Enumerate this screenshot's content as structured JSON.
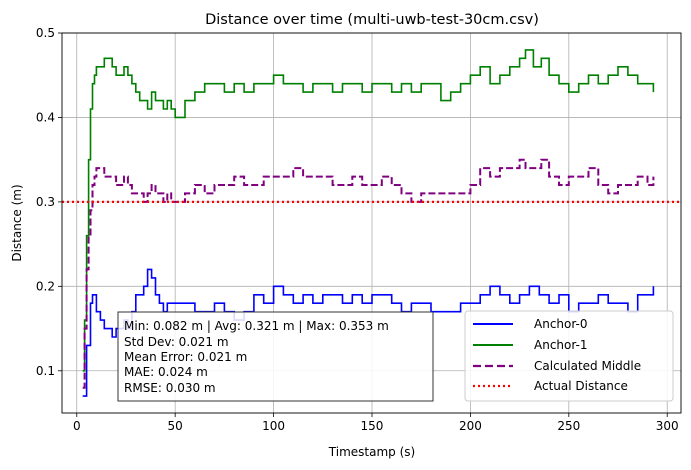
{
  "chart_data": {
    "type": "line",
    "title": "Distance over time (multi-uwb-test-30cm.csv)",
    "xlabel": "Timestamp (s)",
    "ylabel": "Distance (m)",
    "xlim": [
      -7.5,
      307
    ],
    "ylim": [
      0.05,
      0.5
    ],
    "xticks": [
      0,
      50,
      100,
      150,
      200,
      250,
      300
    ],
    "yticks": [
      0.1,
      0.2,
      0.3,
      0.4,
      0.5
    ],
    "xtick_labels": [
      "0",
      "50",
      "100",
      "150",
      "200",
      "250",
      "300"
    ],
    "ytick_labels": [
      "0.1",
      "0.2",
      "0.3",
      "0.4",
      "0.5"
    ],
    "grid": true,
    "legend_position": "lower-right",
    "series": [
      {
        "name": "Anchor-0",
        "color": "#0000ff",
        "style": "solid",
        "x": [
          3,
          5,
          7,
          8,
          10,
          12,
          14,
          16,
          18,
          20,
          22,
          24,
          26,
          28,
          30,
          32,
          34,
          36,
          38,
          40,
          42,
          44,
          46,
          48,
          50,
          55,
          60,
          65,
          70,
          75,
          80,
          85,
          90,
          95,
          100,
          105,
          110,
          115,
          120,
          125,
          130,
          135,
          140,
          145,
          150,
          155,
          160,
          165,
          170,
          175,
          180,
          185,
          190,
          195,
          200,
          205,
          210,
          215,
          220,
          225,
          230,
          235,
          240,
          245,
          250,
          255,
          260,
          265,
          270,
          275,
          280,
          285,
          290,
          293
        ],
        "y": [
          0.07,
          0.13,
          0.18,
          0.19,
          0.17,
          0.16,
          0.15,
          0.15,
          0.14,
          0.15,
          0.15,
          0.16,
          0.15,
          0.17,
          0.19,
          0.19,
          0.2,
          0.22,
          0.21,
          0.19,
          0.18,
          0.17,
          0.18,
          0.18,
          0.18,
          0.18,
          0.17,
          0.17,
          0.18,
          0.17,
          0.16,
          0.17,
          0.19,
          0.18,
          0.2,
          0.19,
          0.18,
          0.19,
          0.18,
          0.19,
          0.19,
          0.18,
          0.19,
          0.18,
          0.19,
          0.19,
          0.18,
          0.17,
          0.18,
          0.18,
          0.17,
          0.17,
          0.17,
          0.18,
          0.18,
          0.19,
          0.2,
          0.19,
          0.18,
          0.19,
          0.2,
          0.19,
          0.18,
          0.19,
          0.17,
          0.18,
          0.18,
          0.19,
          0.18,
          0.18,
          0.17,
          0.19,
          0.19,
          0.2
        ]
      },
      {
        "name": "Anchor-1",
        "color": "#008000",
        "style": "solid",
        "x": [
          3,
          4,
          5,
          6,
          7,
          8,
          9,
          10,
          12,
          14,
          16,
          18,
          20,
          22,
          24,
          26,
          28,
          30,
          32,
          34,
          36,
          38,
          40,
          42,
          44,
          46,
          48,
          50,
          55,
          60,
          65,
          70,
          75,
          80,
          85,
          90,
          95,
          100,
          105,
          110,
          115,
          120,
          125,
          130,
          135,
          140,
          145,
          150,
          155,
          160,
          165,
          170,
          175,
          180,
          185,
          190,
          195,
          200,
          205,
          210,
          215,
          220,
          225,
          228,
          232,
          236,
          240,
          245,
          250,
          255,
          260,
          265,
          270,
          275,
          280,
          285,
          290,
          293
        ],
        "y": [
          0.1,
          0.16,
          0.26,
          0.35,
          0.41,
          0.44,
          0.45,
          0.46,
          0.46,
          0.47,
          0.47,
          0.46,
          0.45,
          0.45,
          0.46,
          0.45,
          0.44,
          0.43,
          0.42,
          0.42,
          0.41,
          0.43,
          0.42,
          0.42,
          0.41,
          0.42,
          0.41,
          0.4,
          0.42,
          0.43,
          0.44,
          0.44,
          0.43,
          0.44,
          0.43,
          0.44,
          0.44,
          0.45,
          0.44,
          0.44,
          0.43,
          0.44,
          0.44,
          0.43,
          0.44,
          0.44,
          0.43,
          0.44,
          0.44,
          0.43,
          0.44,
          0.43,
          0.44,
          0.44,
          0.42,
          0.43,
          0.44,
          0.45,
          0.46,
          0.44,
          0.45,
          0.46,
          0.47,
          0.48,
          0.46,
          0.47,
          0.45,
          0.44,
          0.43,
          0.44,
          0.45,
          0.44,
          0.45,
          0.46,
          0.45,
          0.44,
          0.44,
          0.43
        ]
      },
      {
        "name": "Calculated Middle",
        "color": "#800080",
        "style": "dashed",
        "x": [
          3,
          4,
          5,
          6,
          7,
          8,
          9,
          10,
          12,
          14,
          16,
          18,
          20,
          22,
          24,
          26,
          28,
          30,
          32,
          34,
          36,
          38,
          40,
          42,
          44,
          46,
          48,
          50,
          55,
          60,
          65,
          70,
          75,
          80,
          85,
          90,
          95,
          100,
          105,
          110,
          115,
          120,
          125,
          130,
          135,
          140,
          145,
          150,
          155,
          160,
          165,
          170,
          175,
          180,
          185,
          190,
          195,
          200,
          205,
          210,
          215,
          220,
          225,
          228,
          232,
          236,
          240,
          245,
          250,
          255,
          260,
          265,
          270,
          275,
          280,
          285,
          290,
          293
        ],
        "y": [
          0.08,
          0.15,
          0.22,
          0.26,
          0.29,
          0.32,
          0.33,
          0.34,
          0.34,
          0.33,
          0.33,
          0.33,
          0.32,
          0.32,
          0.33,
          0.32,
          0.31,
          0.31,
          0.31,
          0.3,
          0.31,
          0.32,
          0.31,
          0.31,
          0.3,
          0.31,
          0.3,
          0.3,
          0.31,
          0.32,
          0.31,
          0.32,
          0.32,
          0.33,
          0.32,
          0.32,
          0.33,
          0.33,
          0.33,
          0.34,
          0.33,
          0.33,
          0.33,
          0.32,
          0.32,
          0.33,
          0.32,
          0.32,
          0.33,
          0.32,
          0.31,
          0.3,
          0.31,
          0.31,
          0.31,
          0.31,
          0.31,
          0.32,
          0.34,
          0.33,
          0.34,
          0.34,
          0.35,
          0.34,
          0.34,
          0.35,
          0.33,
          0.32,
          0.33,
          0.33,
          0.34,
          0.32,
          0.31,
          0.32,
          0.32,
          0.33,
          0.32,
          0.33
        ]
      },
      {
        "name": "Actual Distance",
        "color": "#ff0000",
        "style": "dotted",
        "constant_y": 0.3
      }
    ],
    "stats_box": {
      "lines": [
        "Min: 0.082 m | Avg: 0.321 m | Max: 0.353 m",
        "Std Dev: 0.021 m",
        "Mean Error: 0.021 m",
        "MAE: 0.024 m",
        "RMSE: 0.030 m"
      ]
    }
  }
}
